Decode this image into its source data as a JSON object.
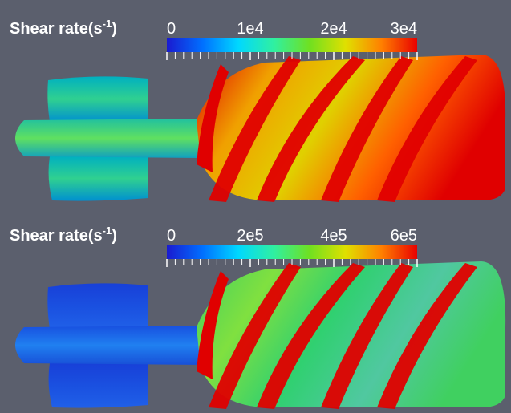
{
  "chart_data": [
    {
      "type": "colorbar",
      "title": "Shear rate(s",
      "title_sup": "-1",
      "title_end": ")",
      "colormap": [
        "#1a1ad0",
        "#0070ff",
        "#00d8ff",
        "#30f0a0",
        "#70e020",
        "#e0e000",
        "#ff8000",
        "#e80000"
      ],
      "xlim": [
        0,
        30000
      ],
      "xticks": [
        0,
        {
          "value": 10000,
          "label": "1e4"
        },
        {
          "value": 20000,
          "label": "2e4"
        },
        {
          "value": 30000,
          "label": "3e4"
        }
      ]
    },
    {
      "type": "colorbar",
      "title": "Shear rate(s",
      "title_sup": "-1",
      "title_end": ")",
      "colormap": [
        "#1a1ad0",
        "#0070ff",
        "#00d8ff",
        "#30f0a0",
        "#70e020",
        "#e0e000",
        "#ff8000",
        "#e80000"
      ],
      "xlim": [
        0,
        600000
      ],
      "xticks": [
        0,
        {
          "value": 200000,
          "label": "2e5"
        },
        {
          "value": 400000,
          "label": "4e5"
        },
        {
          "value": 600000,
          "label": "6e5"
        }
      ]
    }
  ]
}
